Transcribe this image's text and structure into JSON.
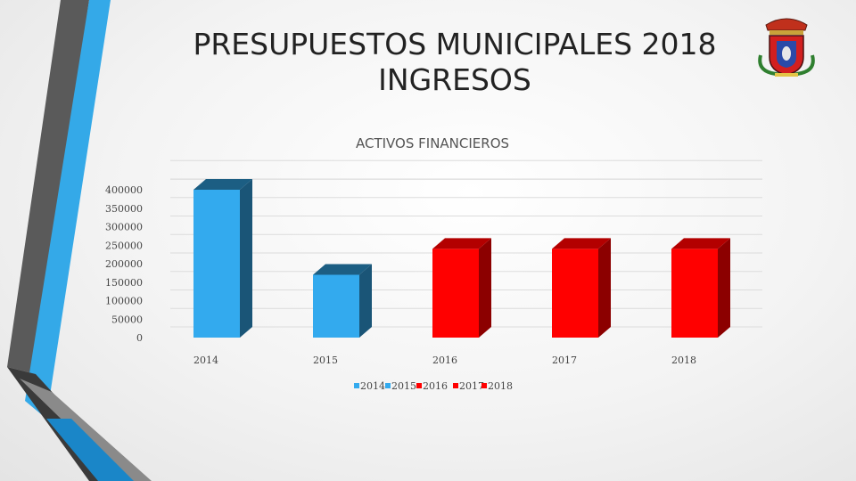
{
  "slide": {
    "title_line1": "PRESUPUESTOS MUNICIPALES 2018",
    "title_line2": "INGRESOS"
  },
  "colors": {
    "blue": "#33aaee",
    "red": "#ff0000",
    "dark_gray": "#3a3a3a",
    "mid_gray": "#8c8c8c"
  },
  "icons": {
    "crest": "municipal-coat-of-arms-icon"
  },
  "chart_data": {
    "type": "bar",
    "title": "ACTIVOS FINANCIEROS",
    "categories": [
      "2014",
      "2015",
      "2016",
      "2017",
      "2018"
    ],
    "values": [
      400000,
      170000,
      240000,
      240000,
      240000
    ],
    "colors": [
      "#33aaee",
      "#33aaee",
      "#ff0000",
      "#ff0000",
      "#ff0000"
    ],
    "ylim": [
      0,
      450000
    ],
    "yticks": [
      0,
      50000,
      100000,
      150000,
      200000,
      250000,
      300000,
      350000,
      400000
    ],
    "ytick_labels": [
      "0",
      "50000",
      "100000",
      "150000",
      "200000",
      "250000",
      "300000",
      "350000",
      "400000"
    ],
    "legend": [
      "2014",
      "2015",
      "2016",
      "2017",
      "2018"
    ],
    "legend_position": "bottom",
    "grid": true,
    "style": "3d-columns"
  }
}
